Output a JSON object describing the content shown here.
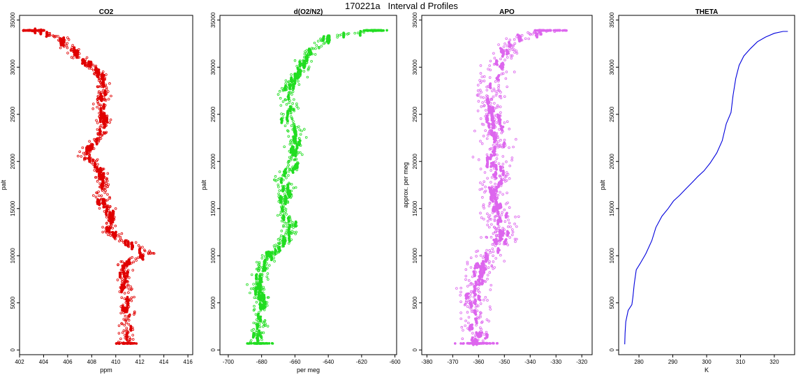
{
  "figure": {
    "title": "170221a   Interval d Profiles"
  },
  "chart_data": [
    {
      "id": "co2",
      "type": "scatter",
      "title": "CO2",
      "xlabel": "ppm",
      "ylabel": "palt",
      "xlim": [
        402,
        416.4
      ],
      "ylim": [
        -500,
        35500
      ],
      "xticks": [
        402,
        404,
        406,
        408,
        410,
        412,
        414,
        416
      ],
      "yticks": [
        0,
        5000,
        10000,
        15000,
        20000,
        25000,
        30000,
        35000
      ],
      "color": "#e00000",
      "profile": [
        [
          403.2,
          33900
        ],
        [
          405.2,
          33200
        ],
        [
          406.0,
          32300
        ],
        [
          407.1,
          31000
        ],
        [
          408.5,
          29700
        ],
        [
          409.1,
          28300
        ],
        [
          408.8,
          26600
        ],
        [
          409.0,
          24800
        ],
        [
          408.8,
          23200
        ],
        [
          408.1,
          21800
        ],
        [
          407.5,
          20600
        ],
        [
          408.7,
          19100
        ],
        [
          409.0,
          17600
        ],
        [
          408.7,
          16300
        ],
        [
          409.3,
          15000
        ],
        [
          409.6,
          13800
        ],
        [
          409.3,
          12600
        ],
        [
          411.1,
          11300
        ],
        [
          412.6,
          10300
        ],
        [
          410.6,
          9000
        ],
        [
          410.7,
          7700
        ],
        [
          410.8,
          6400
        ],
        [
          410.9,
          5100
        ],
        [
          410.9,
          3800
        ],
        [
          411.0,
          2500
        ],
        [
          410.9,
          1300
        ],
        [
          410.9,
          700
        ]
      ],
      "spread": 0.5
    },
    {
      "id": "o2n2",
      "type": "scatter",
      "title": "d(O2/N2)",
      "xlabel": "per meg",
      "ylabel": "palt",
      "xlim": [
        -705,
        -599
      ],
      "ylim": [
        -500,
        35500
      ],
      "xticks": [
        -700,
        -680,
        -660,
        -640,
        -620,
        -600
      ],
      "yticks": [
        0,
        5000,
        10000,
        15000,
        20000,
        25000,
        30000,
        35000
      ],
      "color": "#22dd22",
      "profile": [
        [
          -612,
          33900
        ],
        [
          -638,
          33300
        ],
        [
          -650,
          31800
        ],
        [
          -655,
          30300
        ],
        [
          -660,
          28500
        ],
        [
          -666,
          27200
        ],
        [
          -662,
          25800
        ],
        [
          -665,
          24200
        ],
        [
          -659,
          22800
        ],
        [
          -661,
          21200
        ],
        [
          -660,
          19600
        ],
        [
          -668,
          18200
        ],
        [
          -666,
          16800
        ],
        [
          -668,
          15400
        ],
        [
          -664,
          13800
        ],
        [
          -662,
          12400
        ],
        [
          -668,
          11200
        ],
        [
          -676,
          10000
        ],
        [
          -680,
          8800
        ],
        [
          -681,
          7600
        ],
        [
          -683,
          6300
        ],
        [
          -679,
          5000
        ],
        [
          -682,
          3800
        ],
        [
          -681,
          2600
        ],
        [
          -683,
          1500
        ],
        [
          -682,
          700
        ]
      ],
      "spread": 4
    },
    {
      "id": "apo",
      "type": "scatter",
      "title": "APO",
      "xlabel": "",
      "ylabel": "approx. per meg",
      "xlim": [
        -382,
        -316
      ],
      "ylim": [
        -500,
        35500
      ],
      "xticks": [
        -380,
        -370,
        -360,
        -350,
        -340,
        -330,
        -320
      ],
      "yticks": [
        0,
        5000,
        10000,
        15000,
        20000,
        25000,
        30000,
        35000
      ],
      "color": "#dd66ee",
      "profile": [
        [
          -332,
          33900
        ],
        [
          -345,
          33200
        ],
        [
          -350,
          31500
        ],
        [
          -352,
          30000
        ],
        [
          -354,
          28400
        ],
        [
          -356,
          26800
        ],
        [
          -355,
          25000
        ],
        [
          -354,
          23300
        ],
        [
          -352,
          21800
        ],
        [
          -354,
          20200
        ],
        [
          -352,
          18600
        ],
        [
          -355,
          17000
        ],
        [
          -353,
          15500
        ],
        [
          -352,
          14000
        ],
        [
          -350,
          12500
        ],
        [
          -354,
          11200
        ],
        [
          -357,
          10000
        ],
        [
          -359,
          8700
        ],
        [
          -360,
          7400
        ],
        [
          -362,
          6000
        ],
        [
          -362,
          4700
        ],
        [
          -361,
          3400
        ],
        [
          -362,
          2200
        ],
        [
          -360,
          700
        ]
      ],
      "spread": 5
    },
    {
      "id": "theta",
      "type": "line",
      "title": "THETA",
      "xlabel": "K",
      "ylabel": "palt",
      "xlim": [
        274,
        326
      ],
      "ylim": [
        -500,
        35500
      ],
      "xticks": [
        280,
        290,
        300,
        310,
        320
      ],
      "yticks": [
        0,
        5000,
        10000,
        15000,
        20000,
        25000,
        30000,
        35000
      ],
      "color": "#0000dd",
      "points": [
        [
          275.8,
          600
        ],
        [
          275.9,
          1800
        ],
        [
          276.1,
          3000
        ],
        [
          276.8,
          4200
        ],
        [
          277.9,
          4800
        ],
        [
          278.2,
          5600
        ],
        [
          278.6,
          7000
        ],
        [
          279.2,
          8500
        ],
        [
          280.4,
          9200
        ],
        [
          282.0,
          10200
        ],
        [
          283.8,
          11600
        ],
        [
          285.0,
          13000
        ],
        [
          286.8,
          14200
        ],
        [
          288.6,
          15000
        ],
        [
          290.2,
          15800
        ],
        [
          292.0,
          16400
        ],
        [
          293.6,
          17000
        ],
        [
          295.8,
          17800
        ],
        [
          297.4,
          18400
        ],
        [
          299.2,
          19000
        ],
        [
          301.0,
          19800
        ],
        [
          303.0,
          20900
        ],
        [
          304.6,
          22200
        ],
        [
          305.8,
          24000
        ],
        [
          307.2,
          25200
        ],
        [
          307.8,
          27000
        ],
        [
          308.6,
          28800
        ],
        [
          309.6,
          30200
        ],
        [
          311.0,
          31200
        ],
        [
          313.0,
          32000
        ],
        [
          315.0,
          32700
        ],
        [
          317.4,
          33200
        ],
        [
          320.0,
          33600
        ],
        [
          322.6,
          33800
        ],
        [
          324.0,
          33800
        ]
      ]
    }
  ]
}
